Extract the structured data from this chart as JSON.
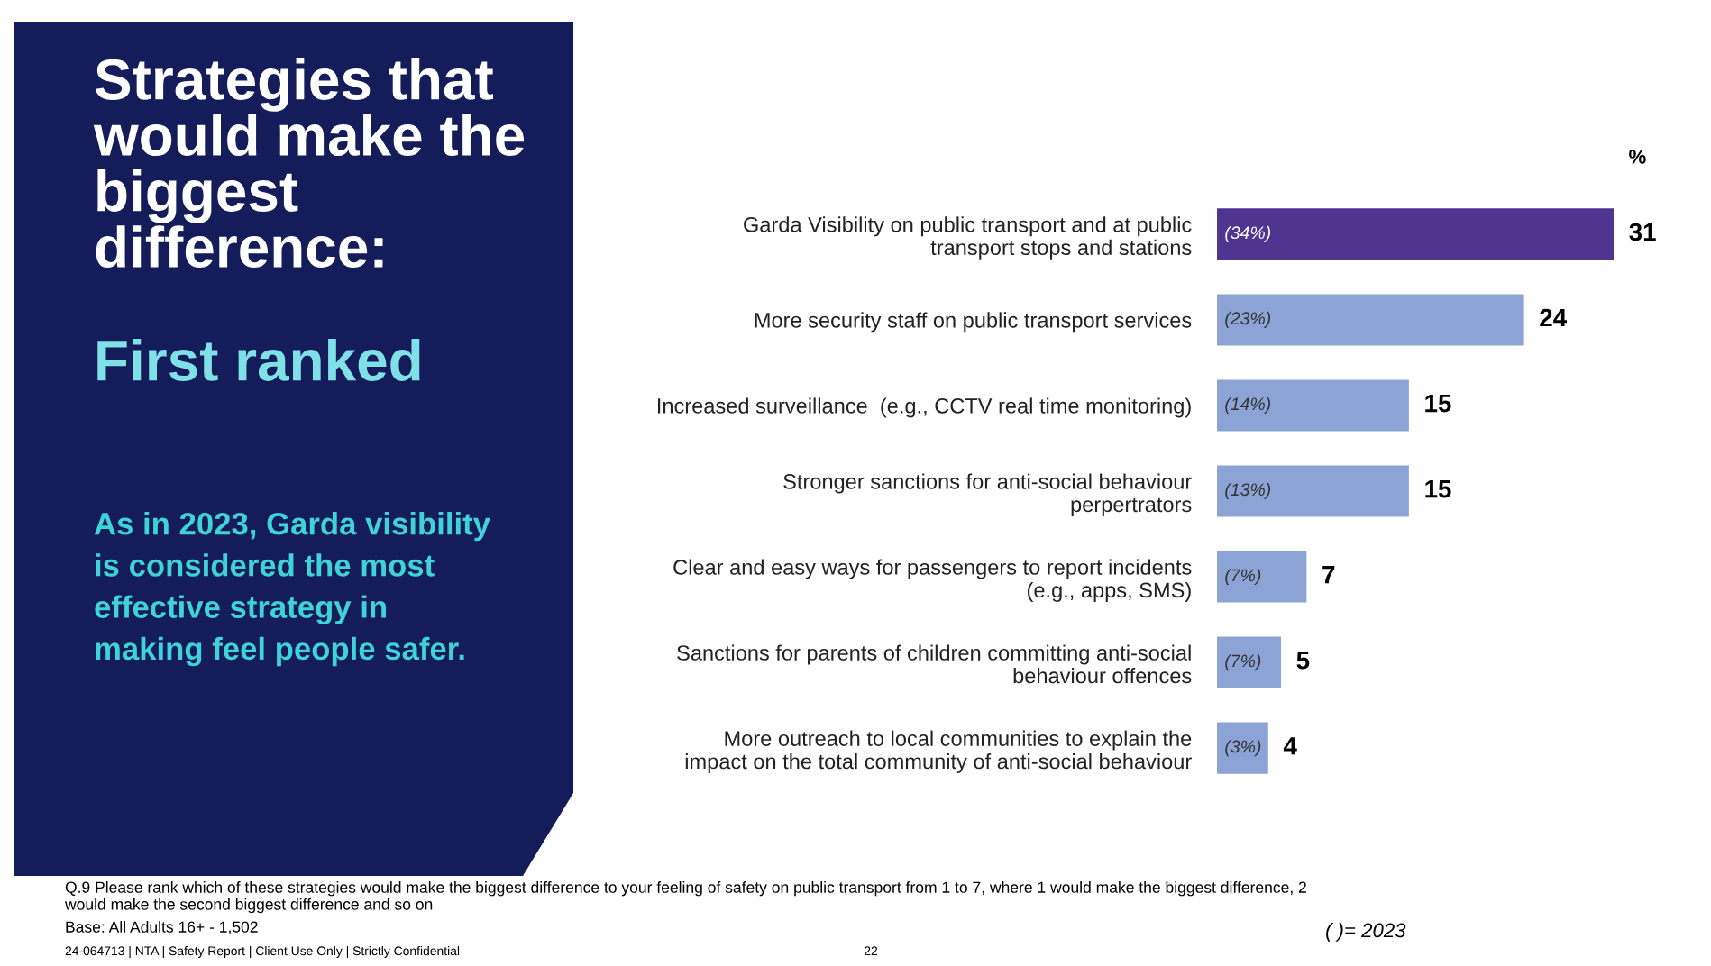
{
  "chart_data": {
    "type": "bar",
    "orientation": "horizontal",
    "title": "Strategies that\nwould make the\nbiggest\ndifference:",
    "subtitle": "First ranked",
    "xlabel": "%",
    "categories": [
      "Garda Visibility on public transport and at public\ntransport stops and stations",
      "More security staff on public transport services",
      "Increased surveillance  (e.g., CCTV real time monitoring)",
      "Stronger sanctions for anti-social behaviour\nperpertrators",
      "Clear and easy ways for passengers to report incidents\n(e.g., apps, SMS)",
      "Sanctions for parents of children committing anti-social\nbehaviour offences",
      "More outreach to local communities to explain the\nimpact on the total community of anti-social behaviour"
    ],
    "values": [
      31,
      24,
      15,
      15,
      7,
      5,
      4
    ],
    "colors": [
      "#4f3590",
      "#8ca3d6",
      "#8ca3d6",
      "#8ca3d6",
      "#8ca3d6",
      "#8ca3d6",
      "#8ca3d6"
    ],
    "data_labels": true,
    "annotations": [
      "(34%)",
      "(23%)",
      "(14%)",
      "(13%)",
      "(7%)",
      "(7%)",
      "(3%)",
      "As in 2023, Garda visibility\nis considered the most\neffective strategy in\nmaking feel people safer.",
      "Q.9 Please rank which of these strategies would make the biggest difference to your feeling of safety on public transport from 1 to 7, where 1 would make the biggest difference, 2\nwould make the second biggest difference and so on",
      "Base: All Adults 16+ - 1,502",
      "24-064713 | NTA | Safety Report | Client Use Only | Strictly Confidential",
      "22",
      "( )= 2023"
    ]
  }
}
